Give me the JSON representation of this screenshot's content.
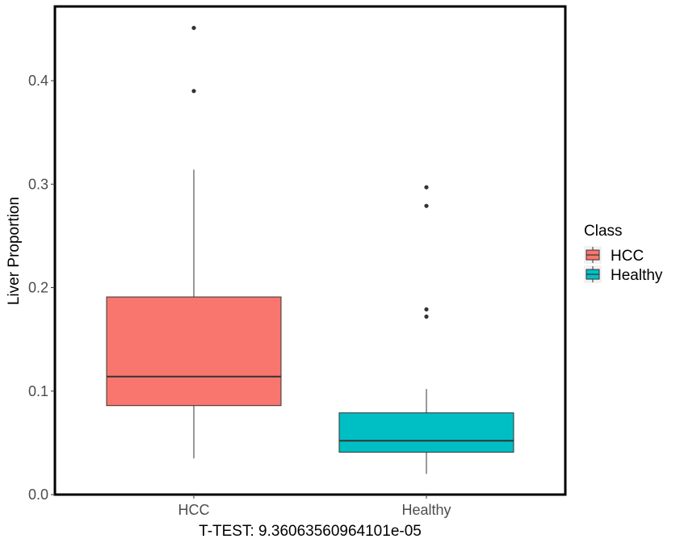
{
  "chart_data": {
    "type": "boxplot",
    "title": "",
    "xlabel": "T-TEST: 9.36063560964101e-05",
    "ylabel": "Liver Proportion",
    "ylim": [
      0,
      0.47
    ],
    "yticks": [
      0.0,
      0.1,
      0.2,
      0.3,
      0.4
    ],
    "ytick_labels": [
      "0.0",
      "0.1",
      "0.2",
      "0.3",
      "0.4"
    ],
    "categories": [
      "HCC",
      "Healthy"
    ],
    "legend": {
      "title": "Class",
      "position": "right",
      "entries": [
        "HCC",
        "Healthy"
      ]
    },
    "grid": false,
    "series": [
      {
        "name": "HCC",
        "color": "#F8766D",
        "q1": 0.086,
        "median": 0.114,
        "q3": 0.191,
        "whisker_low": 0.035,
        "whisker_high": 0.314,
        "outliers": [
          0.39,
          0.451
        ]
      },
      {
        "name": "Healthy",
        "color": "#00BFC4",
        "q1": 0.041,
        "median": 0.052,
        "q3": 0.079,
        "whisker_low": 0.02,
        "whisker_high": 0.102,
        "outliers": [
          0.172,
          0.179,
          0.279,
          0.297
        ]
      }
    ]
  }
}
